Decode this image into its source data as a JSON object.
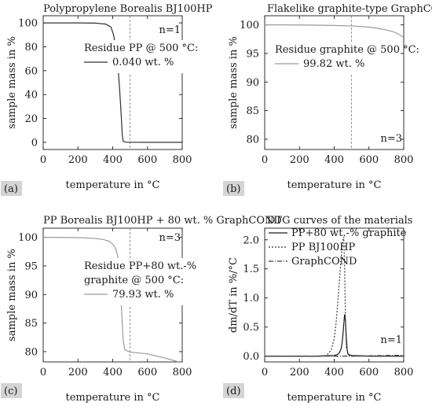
{
  "chart_data": [
    {
      "type": "line",
      "panel_label": "(a)",
      "title": "Polypropylene Borealis BJ100HP",
      "xlabel": "temperature in °C",
      "ylabel": "sample mass in %",
      "xlim": [
        0,
        800
      ],
      "ylim": [
        -6,
        106
      ],
      "xticks": [
        0,
        200,
        400,
        600,
        800
      ],
      "yticks": [
        0,
        20,
        40,
        60,
        80,
        100
      ],
      "n_label": "n=1",
      "vline_x": 500,
      "annotation_lines": [
        "Residue PP @ 500 °C:",
        "0.040 wt. %"
      ],
      "series": [
        {
          "name": "",
          "color": "#303030",
          "dash": "",
          "x": [
            0,
            100,
            200,
            300,
            360,
            390,
            405,
            420,
            430,
            440,
            450,
            455,
            460,
            470,
            500,
            600,
            700,
            800
          ],
          "y": [
            100,
            100,
            100,
            99.8,
            99,
            96.5,
            90,
            77,
            64,
            44,
            20,
            6,
            1,
            0.2,
            0.04,
            0.03,
            0.03,
            0.03
          ]
        }
      ]
    },
    {
      "type": "line",
      "panel_label": "(b)",
      "title": "Flakelike graphite-type GraphCOND",
      "xlabel": "temperature in °C",
      "ylabel": "sample mass in %",
      "xlim": [
        0,
        800
      ],
      "ylim": [
        78.2,
        101.6
      ],
      "xticks": [
        0,
        200,
        400,
        600,
        800
      ],
      "yticks": [
        80,
        85,
        90,
        95,
        100
      ],
      "n_label": "n=3",
      "vline_x": 500,
      "annotation_lines": [
        "Residue graphite @ 500 °C:",
        "99.82 wt. %"
      ],
      "series": [
        {
          "name": "",
          "color": "#9a9a9a",
          "dash": "",
          "x": [
            0,
            100,
            200,
            300,
            400,
            500,
            600,
            650,
            700,
            740,
            770,
            800
          ],
          "y": [
            100,
            100,
            99.98,
            99.95,
            99.9,
            99.82,
            99.6,
            99.4,
            99.1,
            98.8,
            98.4,
            97.8
          ]
        }
      ]
    },
    {
      "type": "line",
      "panel_label": "(c)",
      "title": "PP Borealis BJ100HP + 80 wt. % GraphCOND",
      "xlabel": "temperature in °C",
      "ylabel": "sample mass in %",
      "xlim": [
        0,
        800
      ],
      "ylim": [
        78.2,
        101.6
      ],
      "xticks": [
        0,
        200,
        400,
        600,
        800
      ],
      "yticks": [
        80,
        85,
        90,
        95,
        100
      ],
      "n_label": "n=3",
      "vline_x": 500,
      "annotation_lines": [
        "Residue PP+80 wt.-%",
        "graphite @ 500 °C:",
        "79.93 wt. %"
      ],
      "series": [
        {
          "name": "",
          "color": "#9a9a9a",
          "dash": "",
          "x": [
            0,
            100,
            200,
            300,
            350,
            380,
            400,
            420,
            430,
            440,
            450,
            460,
            470,
            500,
            600,
            700,
            780
          ],
          "y": [
            100,
            99.98,
            99.95,
            99.8,
            99.6,
            99.3,
            98.8,
            97.8,
            96.5,
            93.5,
            88,
            82,
            80.3,
            79.93,
            79.6,
            78.9,
            78.2
          ]
        }
      ]
    },
    {
      "type": "line",
      "panel_label": "(d)",
      "title": "DTG curves of the materials",
      "xlabel": "temperature in °C",
      "ylabel": "dm/dT in %/°C",
      "xlim": [
        0,
        800
      ],
      "ylim": [
        -0.1,
        2.2
      ],
      "xticks": [
        0,
        200,
        400,
        600,
        800
      ],
      "yticks": [
        0.0,
        0.5,
        1.0,
        1.5,
        2.0
      ],
      "n_label": "n=1",
      "vline_x": null,
      "annotation_lines": [],
      "series": [
        {
          "name": "PP+80 wt.-% graphite",
          "color": "#1a1a1a",
          "dash": "",
          "x": [
            0,
            100,
            200,
            300,
            400,
            420,
            430,
            440,
            445,
            450,
            455,
            460,
            465,
            470,
            475,
            480,
            500,
            600,
            700,
            800
          ],
          "y": [
            0,
            0,
            0,
            0,
            0.01,
            0.03,
            0.06,
            0.13,
            0.22,
            0.36,
            0.55,
            0.72,
            0.6,
            0.3,
            0.1,
            0.03,
            0.01,
            0,
            0,
            0
          ]
        },
        {
          "name": "PP BJ100HP",
          "color": "#3a3a3a",
          "dash": "2,2",
          "x": [
            0,
            100,
            200,
            300,
            350,
            370,
            385,
            400,
            410,
            420,
            430,
            440,
            450,
            455,
            460,
            465,
            470,
            480,
            500,
            600,
            800
          ],
          "y": [
            0,
            0,
            0,
            0,
            0.01,
            0.05,
            0.13,
            0.3,
            0.55,
            0.9,
            1.3,
            1.7,
            2.0,
            2.05,
            1.5,
            0.6,
            0.15,
            0.02,
            0,
            0,
            0
          ]
        },
        {
          "name": "GraphCOND",
          "color": "#3a3a3a",
          "dash": "6,2,1,2",
          "x": [
            0,
            100,
            200,
            300,
            400,
            500,
            600,
            700,
            800
          ],
          "y": [
            0,
            0,
            0,
            0,
            0,
            0,
            0.005,
            0.01,
            0.015
          ]
        }
      ]
    }
  ]
}
